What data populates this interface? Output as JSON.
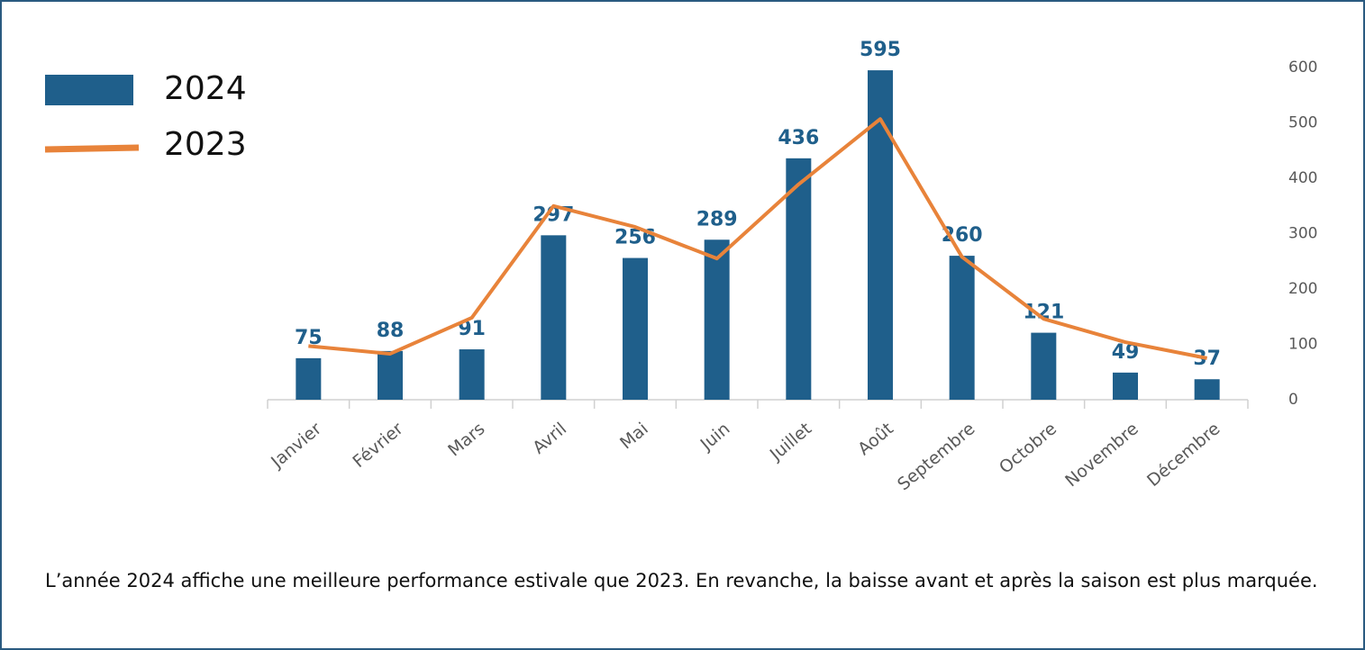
{
  "chart_data": {
    "type": "bar_line",
    "categories": [
      "Janvier",
      "Février",
      "Mars",
      "Avril",
      "Mai",
      "Juin",
      "Juillet",
      "Août",
      "Septembre",
      "Octobre",
      "Novembre",
      "Décembre"
    ],
    "series": [
      {
        "name": "2024",
        "type": "bar",
        "color": "#1f5f8b",
        "values": [
          75,
          88,
          91,
          297,
          256,
          289,
          436,
          595,
          260,
          121,
          49,
          37
        ]
      },
      {
        "name": "2023",
        "type": "line",
        "color": "#e8833a",
        "values": [
          97,
          83,
          148,
          350,
          312,
          255,
          389,
          507,
          258,
          146,
          104,
          75
        ]
      }
    ],
    "ylim": [
      0,
      600
    ],
    "yticks": [
      0,
      100,
      200,
      300,
      400,
      500,
      600
    ],
    "y_axis_side": "right",
    "grid": false,
    "legend": "top-left"
  },
  "caption": "L’année 2024 affiche une meilleure performance estivale que 2023. En revanche, la baisse avant et après la saison est plus marquée."
}
